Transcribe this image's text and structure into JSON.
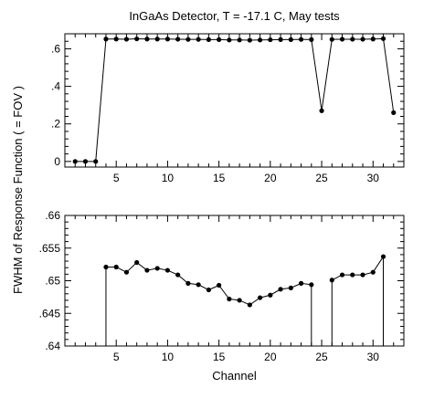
{
  "chart_data": [
    {
      "type": "line",
      "title": "InGaAs Detector, T = -17.1 C, May tests",
      "xlabel": "",
      "ylabel": "FWHM of Response Function ( = FOV )",
      "xlim": [
        0,
        33
      ],
      "ylim": [
        -0.03,
        0.68
      ],
      "xticks": [
        5,
        10,
        15,
        20,
        25,
        30
      ],
      "yticks": [
        0,
        0.2,
        0.4,
        0.6
      ],
      "ytick_labels": [
        "0",
        ".2",
        ".4",
        ".6"
      ],
      "grid": false,
      "series": [
        {
          "x": [
            1,
            2,
            3,
            4,
            5,
            6,
            7,
            8,
            9,
            10,
            11,
            12,
            13,
            14,
            15,
            16,
            17,
            18,
            19,
            20,
            21,
            22,
            23,
            24,
            25,
            26,
            27,
            28,
            29,
            30,
            31,
            32
          ],
          "y": [
            0.0,
            0.0,
            0.0,
            0.652,
            0.652,
            0.651,
            0.653,
            0.652,
            0.652,
            0.652,
            0.651,
            0.65,
            0.65,
            0.649,
            0.649,
            0.647,
            0.647,
            0.646,
            0.647,
            0.648,
            0.649,
            0.649,
            0.65,
            0.649,
            0.27,
            0.65,
            0.651,
            0.651,
            0.651,
            0.652,
            0.654,
            0.26
          ]
        }
      ]
    },
    {
      "type": "line",
      "title": "",
      "xlabel": "Channel",
      "ylabel": "",
      "xlim": [
        0,
        33
      ],
      "ylim": [
        0.64,
        0.66
      ],
      "xticks": [
        5,
        10,
        15,
        20,
        25,
        30
      ],
      "yticks": [
        0.64,
        0.645,
        0.65,
        0.655,
        0.66
      ],
      "ytick_labels": [
        ".64",
        ".645",
        ".65",
        ".655",
        ".66"
      ],
      "grid": false,
      "series": [
        {
          "x": [
            4,
            5,
            6,
            7,
            8,
            9,
            10,
            11,
            12,
            13,
            14,
            15,
            16,
            17,
            18,
            19,
            20,
            21,
            22,
            23,
            24,
            26,
            27,
            28,
            29,
            30,
            31
          ],
          "y": [
            0.6521,
            0.6521,
            0.6513,
            0.6528,
            0.6516,
            0.6519,
            0.6516,
            0.6509,
            0.6496,
            0.6494,
            0.6486,
            0.6493,
            0.6472,
            0.647,
            0.6463,
            0.6474,
            0.6478,
            0.6487,
            0.6489,
            0.6496,
            0.6494,
            0.6501,
            0.6509,
            0.6509,
            0.6509,
            0.6513,
            0.6537
          ]
        }
      ]
    }
  ]
}
